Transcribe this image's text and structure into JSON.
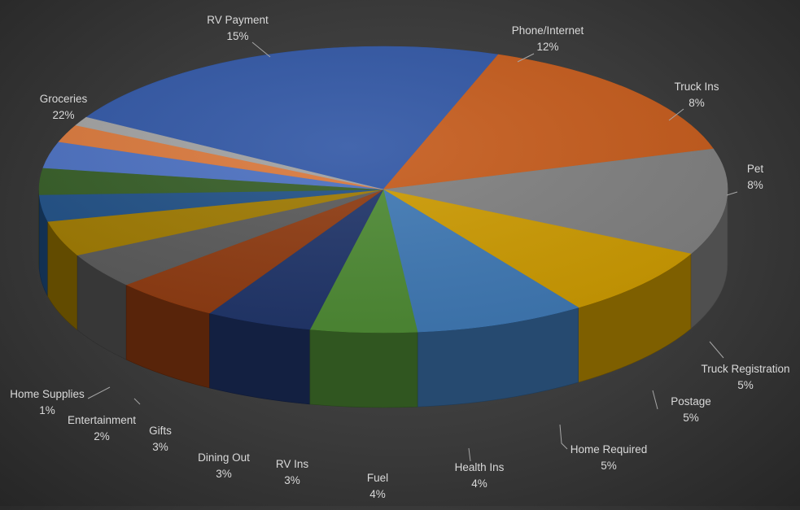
{
  "chart_data": {
    "type": "pie",
    "style": "3d",
    "title": "",
    "legend": "none",
    "data_labels": "category name and percentage",
    "slices": [
      {
        "name": "Groceries",
        "label": "22%",
        "value": 22,
        "color": "#2f55a4"
      },
      {
        "name": "RV Payment",
        "label": "15%",
        "value": 15,
        "color": "#c55a1a"
      },
      {
        "name": "Phone/Internet",
        "label": "12%",
        "value": 12,
        "color": "#7f7f7f"
      },
      {
        "name": "Truck Ins",
        "label": "8%",
        "value": 8,
        "color": "#cc9a00"
      },
      {
        "name": "Pet",
        "label": "8%",
        "value": 8,
        "color": "#3e78b4"
      },
      {
        "name": "Truck Registration",
        "label": "5%",
        "value": 5,
        "color": "#4d8a33"
      },
      {
        "name": "Postage",
        "label": "5%",
        "value": 5,
        "color": "#1f3469"
      },
      {
        "name": "Home Required",
        "label": "5%",
        "value": 5,
        "color": "#8e3a10"
      },
      {
        "name": "Health Ins",
        "label": "4%",
        "value": 4,
        "color": "#595959"
      },
      {
        "name": "Fuel",
        "label": "4%",
        "value": 4,
        "color": "#9e7900"
      },
      {
        "name": "RV Ins",
        "label": "3%",
        "value": 3,
        "color": "#1f4f85"
      },
      {
        "name": "Dining Out",
        "label": "3%",
        "value": 3,
        "color": "#345c25"
      },
      {
        "name": "Gifts",
        "label": "3%",
        "value": 3,
        "color": "#4a6fc0"
      },
      {
        "name": "Entertainment",
        "label": "2%",
        "value": 2,
        "color": "#d9773a"
      },
      {
        "name": "Home Supplies",
        "label": "1%",
        "value": 1,
        "color": "#a0a0a0"
      }
    ]
  }
}
